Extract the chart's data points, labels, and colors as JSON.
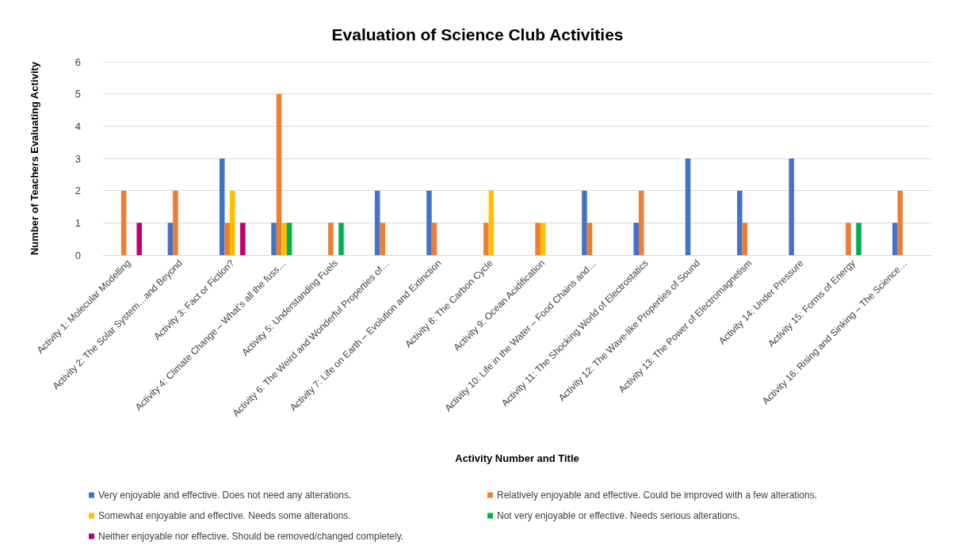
{
  "chart_data": {
    "type": "bar",
    "title": "Evaluation of Science Club Activities",
    "xlabel": "Activity Number and Title",
    "ylabel": "Number of Teachers Evaluating Activity",
    "categories": [
      "Activity 1: Molecular Modelling",
      "Activity 2: The Solar System…and Beyond",
      "Activity 3: Fact or Fiction?",
      "Activity 4: Climate Change – What’s all the fuss…",
      "Activity 5: Understanding Fuels",
      "Activity 6: The Weird and Wonderful Properties of…",
      "Activity 7: Life on Earth – Evolution and Extinction",
      "Activity 8: The Carbon Cycle",
      "Activity 9: Ocean Acidification",
      "Activity 10: Life in the Water – Food Chains and…",
      "Activity 11: The Shocking World of Electrostatics",
      "Activity 12: The Wave-like Properties of Sound",
      "Activity 13: The Power of Electromagnetism",
      "Activity 14: Under Pressure",
      "Activity 15: Forms of Energy",
      "Activity 16: Rising and Sinking – The Science…"
    ],
    "series": [
      {
        "name": "Very enjoyable and effective. Does not need any alterations.",
        "color": "#4472c4",
        "values": [
          0,
          1,
          3,
          1,
          0,
          2,
          2,
          0,
          0,
          2,
          1,
          3,
          2,
          3,
          0,
          1
        ]
      },
      {
        "name": "Relatively enjoyable and effective. Could be improved with a few alterations.",
        "color": "#ed7d31",
        "values": [
          2,
          2,
          1,
          5,
          1,
          1,
          1,
          1,
          1,
          1,
          2,
          0,
          1,
          0,
          1,
          2
        ]
      },
      {
        "name": "Somewhat enjoyable and effective. Needs some alterations.",
        "color": "#ffc000",
        "values": [
          0,
          0,
          2,
          1,
          0,
          0,
          0,
          2,
          1,
          0,
          0,
          0,
          0,
          0,
          0,
          0
        ]
      },
      {
        "name": "Not very enjoyable or effective. Needs serious alterations.",
        "color": "#00b050",
        "values": [
          0,
          0,
          0,
          1,
          1,
          0,
          0,
          0,
          0,
          0,
          0,
          0,
          0,
          0,
          1,
          0
        ]
      },
      {
        "name": "Neither enjoyable nor effective. Should be removed/changed completely.",
        "color": "#c0006f",
        "values": [
          1,
          0,
          1,
          0,
          0,
          0,
          0,
          0,
          0,
          0,
          0,
          0,
          0,
          0,
          0,
          0
        ]
      }
    ],
    "ylim": [
      0,
      6
    ],
    "yticks": [
      0,
      1,
      2,
      3,
      4,
      5,
      6
    ],
    "grid": "y",
    "legend": "bottom"
  }
}
